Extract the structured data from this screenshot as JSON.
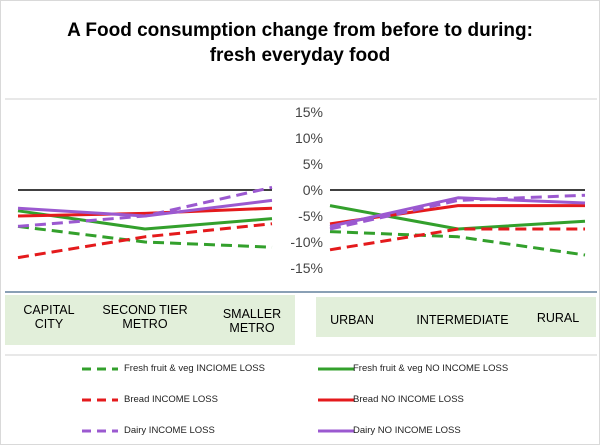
{
  "chart_data": {
    "type": "line",
    "title_line1": "A Food consumption change from before to during:",
    "title_line2": "fresh everyday food",
    "y_ticks": [
      "15%",
      "10%",
      "5%",
      "0%",
      "-5%",
      "-10%",
      "-15%"
    ],
    "ylim": [
      -15,
      15
    ],
    "panels": [
      {
        "name": "left",
        "categories": [
          "CAPITAL CITY",
          "SECOND TIER METRO",
          "SMALLER METRO"
        ],
        "series": [
          {
            "name": "Fresh fruit & veg INCIOME LOSS",
            "color": "#33a02c",
            "dashed": true,
            "values": [
              -7,
              -10,
              -11
            ]
          },
          {
            "name": "Fresh fruit & veg NO INCOME LOSS",
            "color": "#33a02c",
            "dashed": false,
            "values": [
              -4,
              -7.5,
              -5.5
            ]
          },
          {
            "name": "Bread INCOME LOSS",
            "color": "#e41a1c",
            "dashed": true,
            "values": [
              -13,
              -9,
              -6.5
            ]
          },
          {
            "name": "Bread NO INCOME LOSS",
            "color": "#e41a1c",
            "dashed": false,
            "values": [
              -5,
              -4.5,
              -3.5
            ]
          },
          {
            "name": "Dairy INCOME LOSS",
            "color": "#9b59d0",
            "dashed": true,
            "values": [
              -7,
              -5,
              0.5
            ]
          },
          {
            "name": "Dairy NO INCOME LOSS",
            "color": "#9b59d0",
            "dashed": false,
            "values": [
              -3.5,
              -5,
              -2
            ]
          }
        ]
      },
      {
        "name": "right",
        "categories": [
          "URBAN",
          "INTERMEDIATE",
          "RURAL"
        ],
        "series": [
          {
            "name": "Fresh fruit & veg INCIOME LOSS",
            "color": "#33a02c",
            "dashed": true,
            "values": [
              -8,
              -9,
              -12.5
            ]
          },
          {
            "name": "Fresh fruit & veg NO INCOME LOSS",
            "color": "#33a02c",
            "dashed": false,
            "values": [
              -3,
              -7.5,
              -6
            ]
          },
          {
            "name": "Bread INCOME LOSS",
            "color": "#e41a1c",
            "dashed": true,
            "values": [
              -11.5,
              -7.5,
              -7.5
            ]
          },
          {
            "name": "Bread NO INCOME LOSS",
            "color": "#e41a1c",
            "dashed": false,
            "values": [
              -6.5,
              -3,
              -3
            ]
          },
          {
            "name": "Dairy INCOME LOSS",
            "color": "#9b59d0",
            "dashed": true,
            "values": [
              -7.5,
              -2,
              -1
            ]
          },
          {
            "name": "Dairy NO INCOME LOSS",
            "color": "#9b59d0",
            "dashed": false,
            "values": [
              -7,
              -1.5,
              -2.5
            ]
          }
        ]
      }
    ],
    "legend": [
      {
        "label": "Fresh fruit & veg INCIOME LOSS",
        "color": "#33a02c",
        "dashed": true
      },
      {
        "label": "Fresh fruit & veg NO INCOME LOSS",
        "color": "#33a02c",
        "dashed": false
      },
      {
        "label": "Bread INCOME LOSS",
        "color": "#e41a1c",
        "dashed": true
      },
      {
        "label": "Bread NO INCOME LOSS",
        "color": "#e41a1c",
        "dashed": false
      },
      {
        "label": "Dairy INCOME LOSS",
        "color": "#9b59d0",
        "dashed": true
      },
      {
        "label": "Dairy NO INCOME LOSS",
        "color": "#9b59d0",
        "dashed": false
      }
    ],
    "category_labels": {
      "capital": "CAPITAL\nCITY",
      "second": "SECOND TIER\nMETRO",
      "smaller": "SMALLER\nMETRO",
      "urban": "URBAN",
      "intermediate": "INTERMEDIATE",
      "rural": "RURAL"
    },
    "category_band_color": "#e2efda"
  }
}
